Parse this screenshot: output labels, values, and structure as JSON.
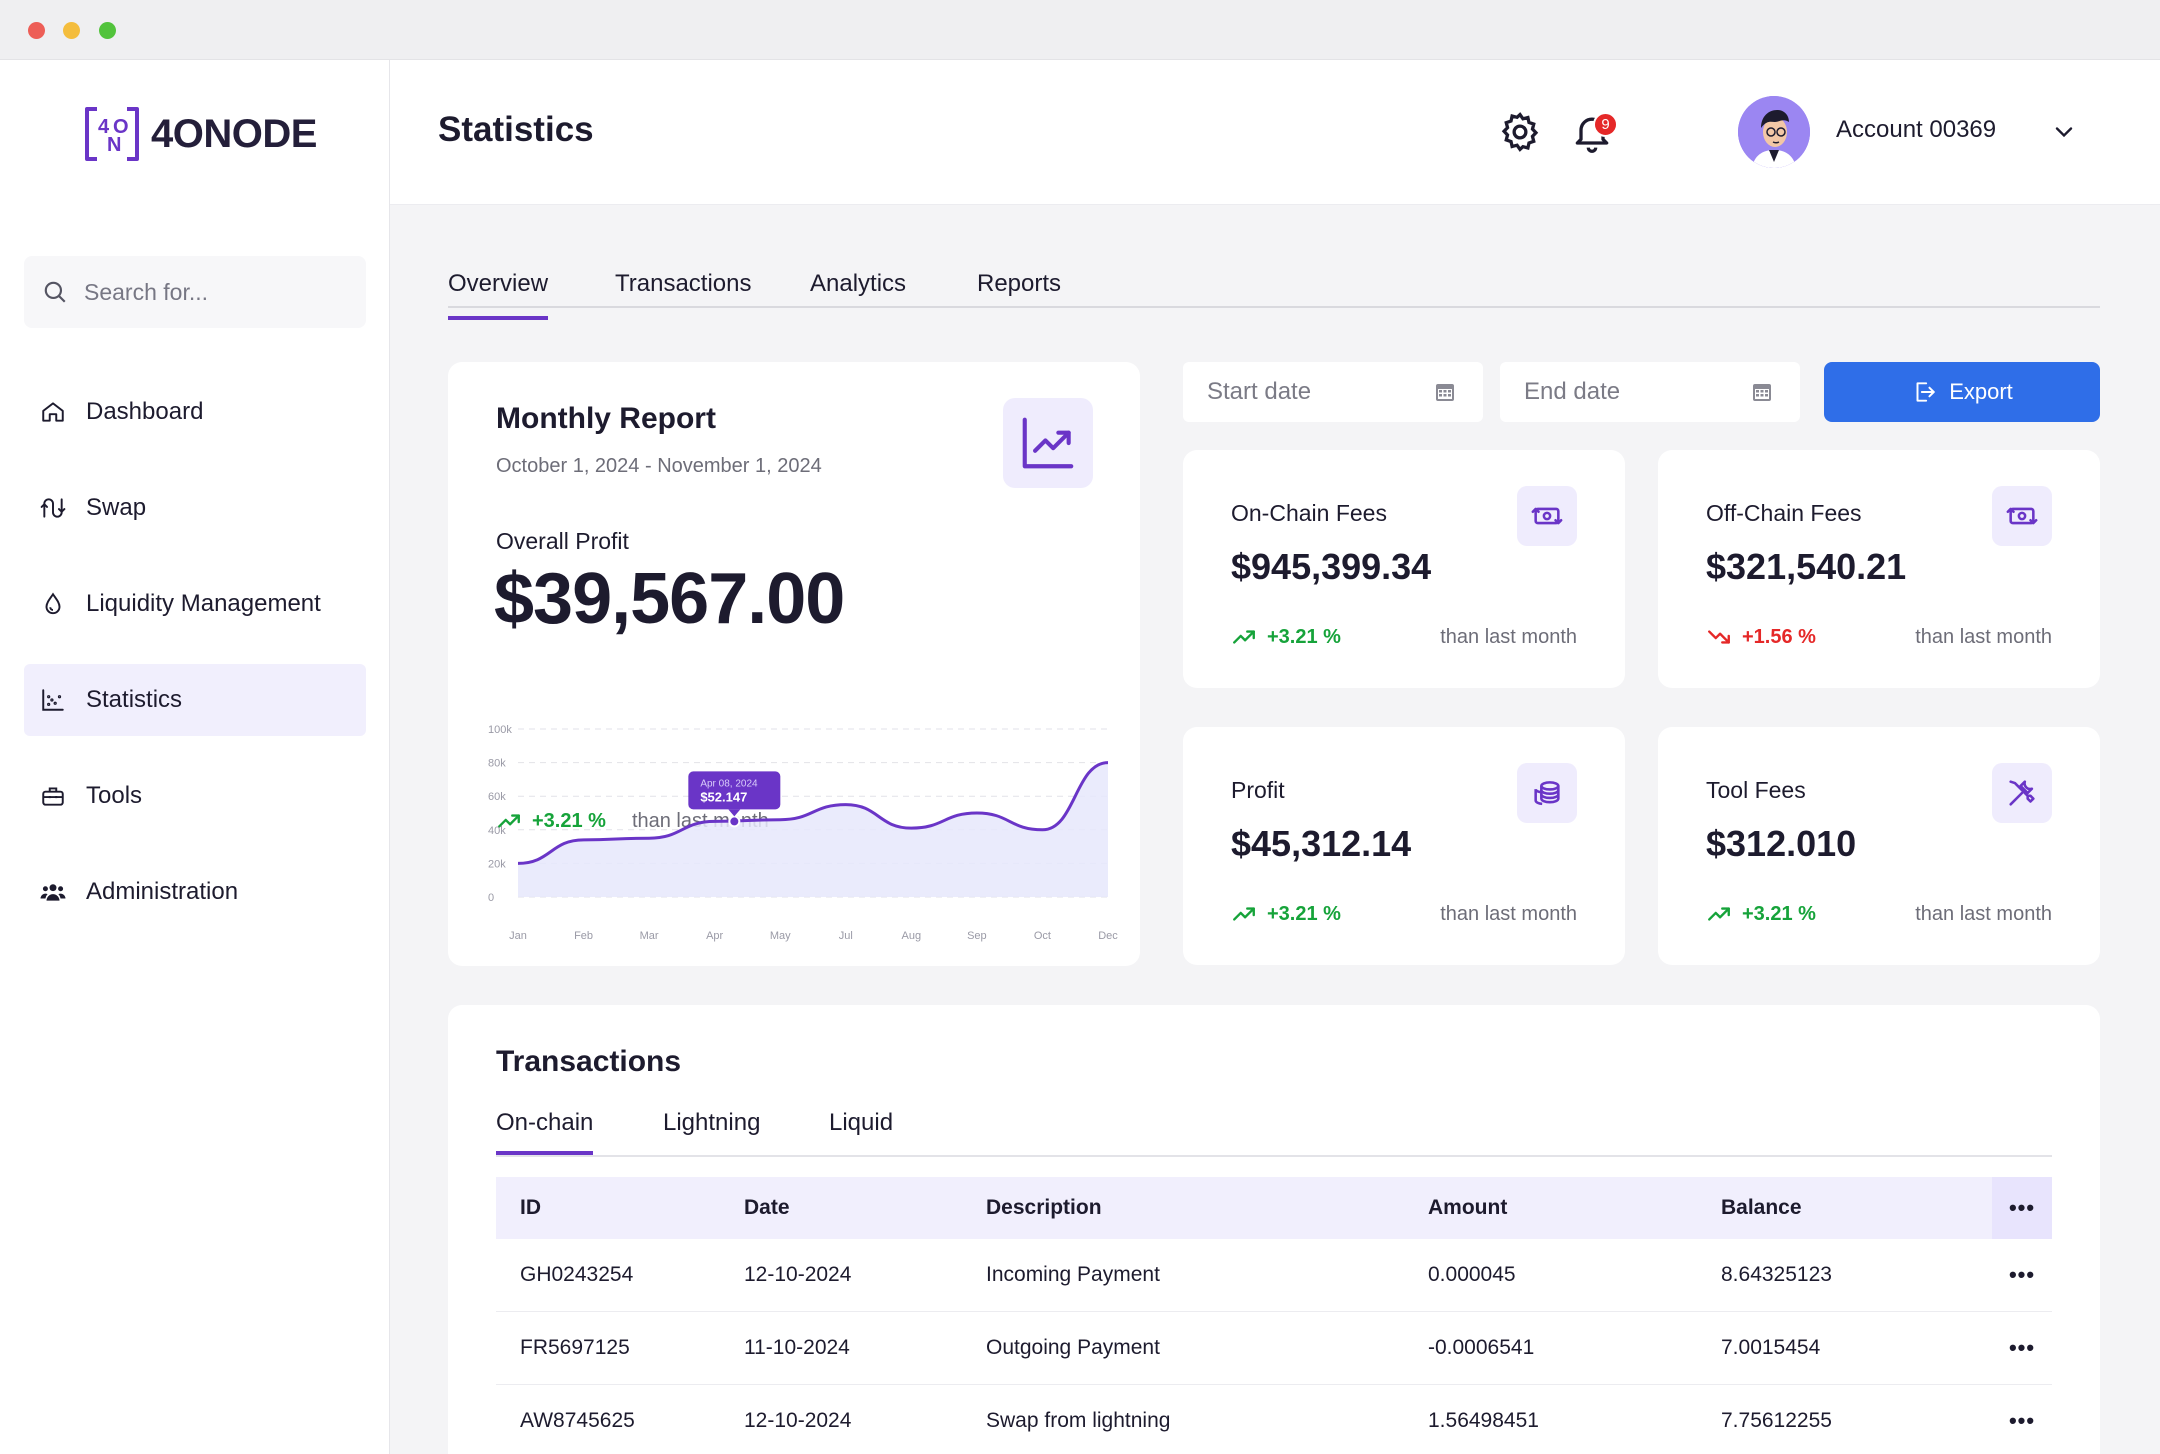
{
  "window": {
    "controls": [
      "close",
      "minimize",
      "maximize"
    ]
  },
  "brand": {
    "logo_text": "4ONODE",
    "mark": [
      "4",
      "O",
      "N"
    ],
    "accent": "#6a35c7"
  },
  "sidebar": {
    "search_placeholder": "Search for...",
    "items": [
      {
        "label": "Dashboard",
        "icon": "home-icon",
        "active": false
      },
      {
        "label": "Swap",
        "icon": "swap-icon",
        "active": false
      },
      {
        "label": "Liquidity Management",
        "icon": "droplet-icon",
        "active": false
      },
      {
        "label": "Statistics",
        "icon": "chart-icon",
        "active": true
      },
      {
        "label": "Tools",
        "icon": "toolbox-icon",
        "active": false
      },
      {
        "label": "Administration",
        "icon": "users-icon",
        "active": false
      }
    ]
  },
  "header": {
    "title": "Statistics",
    "notification_count": "9",
    "account_name": "Account 00369"
  },
  "tabs": [
    "Overview",
    "Transactions",
    "Analytics",
    "Reports"
  ],
  "report": {
    "title": "Monthly Report",
    "range": "October 1, 2024 - November 1, 2024",
    "profit_label": "Overall Profit",
    "profit_value": "$39,567.00",
    "trend_pct": "+3.21 %",
    "trend_text": "than last month"
  },
  "filters": {
    "start_placeholder": "Start date",
    "end_placeholder": "End date",
    "export_label": "Export"
  },
  "stats": [
    {
      "name": "On-Chain Fees",
      "value": "$945,399.34",
      "pct": "+3.21 %",
      "direction": "up",
      "text": "than last month",
      "icon": "money-swap-icon"
    },
    {
      "name": "Off-Chain Fees",
      "value": "$321,540.21",
      "pct": "+1.56 %",
      "direction": "down",
      "text": "than last month",
      "icon": "money-swap-icon"
    },
    {
      "name": "Profit",
      "value": "$45,312.14",
      "pct": "+3.21 %",
      "direction": "up",
      "text": "than last month",
      "icon": "coins-icon"
    },
    {
      "name": "Tool Fees",
      "value": "$312.010",
      "pct": "+3.21 %",
      "direction": "up",
      "text": "than last month",
      "icon": "tools-icon"
    }
  ],
  "transactions": {
    "title": "Transactions",
    "subtabs": [
      "On-chain",
      "Lightning",
      "Liquid"
    ],
    "columns": [
      "ID",
      "Date",
      "Description",
      "Amount",
      "Balance"
    ],
    "more_label": "•••",
    "rows": [
      {
        "id": "GH0243254",
        "date": "12-10-2024",
        "description": "Incoming Payment",
        "amount": "0.000045",
        "balance": "8.64325123"
      },
      {
        "id": "FR5697125",
        "date": "11-10-2024",
        "description": "Outgoing Payment",
        "amount": "-0.0006541",
        "balance": "7.0015454"
      },
      {
        "id": "AW8745625",
        "date": "12-10-2024",
        "description": "Swap from lightning",
        "amount": "1.56498451",
        "balance": "7.75612255"
      }
    ]
  },
  "chart_data": {
    "type": "area",
    "categories": [
      "Jan",
      "Feb",
      "Mar",
      "Apr",
      "May",
      "Jul",
      "Aug",
      "Sep",
      "Oct",
      "Dec"
    ],
    "series": [
      {
        "values": [
          20000,
          34000,
          35000,
          45000,
          46000,
          55000,
          41000,
          50000,
          40000,
          80000
        ]
      }
    ],
    "y_ticks": [
      "100k",
      "80k",
      "60k",
      "40k",
      "20k",
      "0"
    ],
    "ylim": [
      0,
      100000
    ],
    "tooltip": {
      "date": "Apr 08, 2024",
      "value": "$52.147",
      "x_index": 3.3,
      "y": 45000
    },
    "grid": "dashed-horizontal",
    "line_color": "#6a35c7",
    "fill_color": "#e6e8fb"
  }
}
